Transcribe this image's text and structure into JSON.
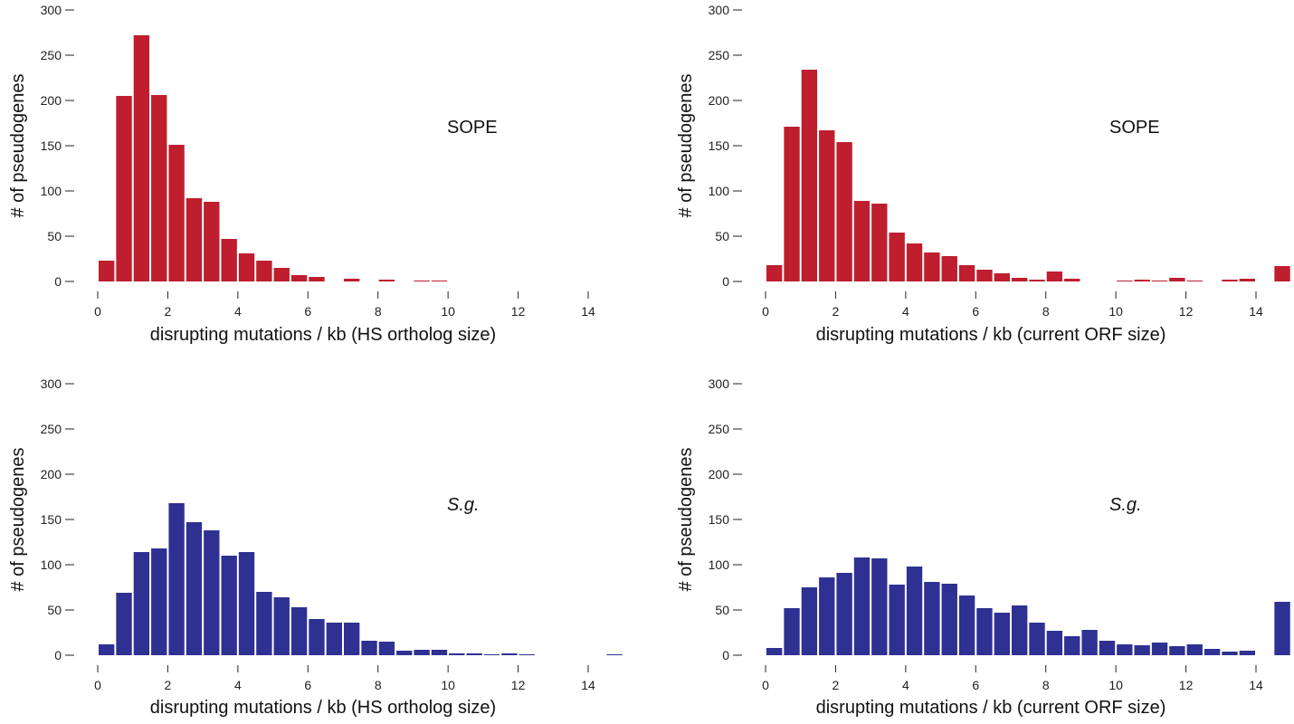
{
  "chart_data": [
    {
      "type": "bar",
      "title": "",
      "annotation": "SOPE",
      "annotation_style": "normal",
      "xlabel": "disrupting mutations / kb (HS ortholog size)",
      "ylabel": "# of pseudogenes",
      "xlim": [
        0,
        15
      ],
      "ylim": [
        0,
        300
      ],
      "xticks": [
        0,
        2,
        4,
        6,
        8,
        10,
        12,
        14
      ],
      "yticks": [
        0,
        50,
        100,
        150,
        200,
        250,
        300
      ],
      "bin_width": 0.5,
      "color": "#bf1e2e",
      "bins": [
        [
          0,
          23
        ],
        [
          0.5,
          205
        ],
        [
          1,
          272
        ],
        [
          1.5,
          206
        ],
        [
          2,
          151
        ],
        [
          2.5,
          92
        ],
        [
          3,
          88
        ],
        [
          3.5,
          47
        ],
        [
          4,
          31
        ],
        [
          4.5,
          23
        ],
        [
          5,
          15
        ],
        [
          5.5,
          7
        ],
        [
          6,
          5
        ],
        [
          6.5,
          0
        ],
        [
          7,
          3
        ],
        [
          7.5,
          0
        ],
        [
          8,
          2
        ],
        [
          8.5,
          0
        ],
        [
          9,
          1
        ],
        [
          9.5,
          1
        ]
      ]
    },
    {
      "type": "bar",
      "title": "",
      "annotation": "SOPE",
      "annotation_style": "normal",
      "xlabel": "disrupting mutations / kb (current ORF size)",
      "ylabel": "# of pseudogenes",
      "xlim": [
        0,
        15
      ],
      "ylim": [
        0,
        300
      ],
      "xticks": [
        0,
        2,
        4,
        6,
        8,
        10,
        12,
        14
      ],
      "yticks": [
        0,
        50,
        100,
        150,
        200,
        250,
        300
      ],
      "bin_width": 0.5,
      "color": "#bf1e2e",
      "bins": [
        [
          0,
          18
        ],
        [
          0.5,
          171
        ],
        [
          1,
          234
        ],
        [
          1.5,
          167
        ],
        [
          2,
          154
        ],
        [
          2.5,
          89
        ],
        [
          3,
          86
        ],
        [
          3.5,
          54
        ],
        [
          4,
          42
        ],
        [
          4.5,
          32
        ],
        [
          5,
          28
        ],
        [
          5.5,
          18
        ],
        [
          6,
          13
        ],
        [
          6.5,
          9
        ],
        [
          7,
          4
        ],
        [
          7.5,
          2
        ],
        [
          8,
          11
        ],
        [
          8.5,
          3
        ],
        [
          9,
          0
        ],
        [
          9.5,
          0
        ],
        [
          10,
          1
        ],
        [
          10.5,
          2
        ],
        [
          11,
          1
        ],
        [
          11.5,
          4
        ],
        [
          12,
          1
        ],
        [
          12.5,
          0
        ],
        [
          13,
          2
        ],
        [
          13.5,
          3
        ],
        [
          14,
          0
        ],
        [
          14.5,
          17
        ]
      ]
    },
    {
      "type": "bar",
      "title": "",
      "annotation": "S.g.",
      "annotation_style": "italic",
      "xlabel": "disrupting mutations / kb (HS ortholog size)",
      "ylabel": "# of pseudogenes",
      "xlim": [
        0,
        15
      ],
      "ylim": [
        0,
        300
      ],
      "xticks": [
        0,
        2,
        4,
        6,
        8,
        10,
        12,
        14
      ],
      "yticks": [
        0,
        50,
        100,
        150,
        200,
        250,
        300
      ],
      "bin_width": 0.5,
      "color": "#2e3192",
      "bins": [
        [
          0,
          12
        ],
        [
          0.5,
          69
        ],
        [
          1,
          114
        ],
        [
          1.5,
          118
        ],
        [
          2,
          168
        ],
        [
          2.5,
          147
        ],
        [
          3,
          138
        ],
        [
          3.5,
          110
        ],
        [
          4,
          114
        ],
        [
          4.5,
          70
        ],
        [
          5,
          64
        ],
        [
          5.5,
          53
        ],
        [
          6,
          40
        ],
        [
          6.5,
          36
        ],
        [
          7,
          36
        ],
        [
          7.5,
          16
        ],
        [
          8,
          15
        ],
        [
          8.5,
          5
        ],
        [
          9,
          6
        ],
        [
          9.5,
          6
        ],
        [
          10,
          2
        ],
        [
          10.5,
          2
        ],
        [
          11,
          1
        ],
        [
          11.5,
          2
        ],
        [
          12,
          1
        ],
        [
          12.5,
          0
        ],
        [
          13,
          0
        ],
        [
          13.5,
          0
        ],
        [
          14,
          0
        ],
        [
          14.5,
          1
        ]
      ]
    },
    {
      "type": "bar",
      "title": "",
      "annotation": "S.g.",
      "annotation_style": "italic",
      "xlabel": "disrupting mutations / kb  (current ORF size)",
      "ylabel": "# of pseudogenes",
      "xlim": [
        0,
        15
      ],
      "ylim": [
        0,
        300
      ],
      "xticks": [
        0,
        2,
        4,
        6,
        8,
        10,
        12,
        14
      ],
      "yticks": [
        0,
        50,
        100,
        150,
        200,
        250,
        300
      ],
      "bin_width": 0.5,
      "color": "#2e3192",
      "bins": [
        [
          0,
          8
        ],
        [
          0.5,
          52
        ],
        [
          1,
          75
        ],
        [
          1.5,
          86
        ],
        [
          2,
          91
        ],
        [
          2.5,
          108
        ],
        [
          3,
          107
        ],
        [
          3.5,
          78
        ],
        [
          4,
          98
        ],
        [
          4.5,
          81
        ],
        [
          5,
          79
        ],
        [
          5.5,
          66
        ],
        [
          6,
          52
        ],
        [
          6.5,
          47
        ],
        [
          7,
          55
        ],
        [
          7.5,
          36
        ],
        [
          8,
          27
        ],
        [
          8.5,
          21
        ],
        [
          9,
          28
        ],
        [
          9.5,
          16
        ],
        [
          10,
          12
        ],
        [
          10.5,
          11
        ],
        [
          11,
          14
        ],
        [
          11.5,
          10
        ],
        [
          12,
          12
        ],
        [
          12.5,
          7
        ],
        [
          13,
          4
        ],
        [
          13.5,
          5
        ],
        [
          14,
          0
        ],
        [
          14.5,
          59
        ]
      ]
    }
  ]
}
